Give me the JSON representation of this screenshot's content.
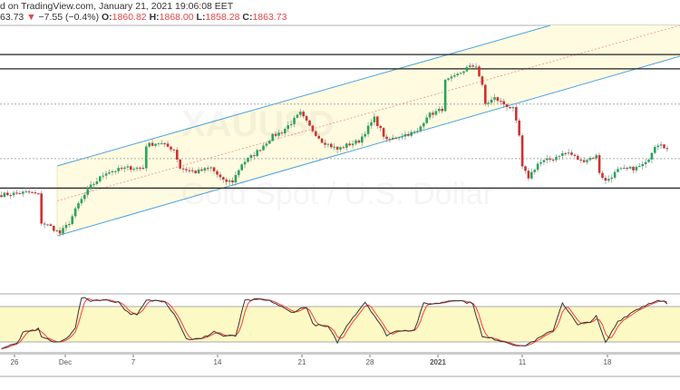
{
  "header": {
    "line1": "d on TradingView.com, January 21, 2021 19:06:08 EET",
    "last": "63.73",
    "change_arrow": "▼",
    "change": "−7.55 (−0.4%)",
    "o_label": "O:",
    "o": "1860.82",
    "h_label": "H:",
    "h": "1868.00",
    "l_label": "L:",
    "l": "1858.28",
    "c_label": "C:",
    "c": "1863.73"
  },
  "watermark": {
    "symbol": "XAUUSD",
    "description": "Gold Spot / U.S. Dollar"
  },
  "colors": {
    "up": "#26a65b",
    "down": "#d32f2f",
    "channel": "#4aa3df",
    "channel_fill": "#fffbe0",
    "band_fill": "#fdf9c4",
    "k_line": "#333333",
    "d_line": "#ff3b3b"
  },
  "x_axis": {
    "ticks": [
      "26",
      "Dec",
      "7",
      "14",
      "21",
      "28",
      "2021",
      "11",
      "18"
    ]
  },
  "price_levels": {
    "resistance": [
      1977,
      1960
    ],
    "dotted": [
      1918,
      1853
    ],
    "support": [
      1818
    ]
  },
  "chart_data": {
    "type": "candlestick",
    "bar_count": 217,
    "close_keypoints": [
      [
        0,
        1810
      ],
      [
        9,
        1813
      ],
      [
        12,
        1810
      ],
      [
        13,
        1777
      ],
      [
        16,
        1772
      ],
      [
        19,
        1764
      ],
      [
        22,
        1777
      ],
      [
        25,
        1799
      ],
      [
        29,
        1820
      ],
      [
        34,
        1837
      ],
      [
        41,
        1842
      ],
      [
        46,
        1842
      ],
      [
        47,
        1869
      ],
      [
        51,
        1872
      ],
      [
        56,
        1864
      ],
      [
        58,
        1842
      ],
      [
        63,
        1837
      ],
      [
        68,
        1842
      ],
      [
        72,
        1826
      ],
      [
        75,
        1826
      ],
      [
        78,
        1847
      ],
      [
        82,
        1858
      ],
      [
        88,
        1880
      ],
      [
        91,
        1885
      ],
      [
        97,
        1907
      ],
      [
        100,
        1891
      ],
      [
        104,
        1874
      ],
      [
        109,
        1864
      ],
      [
        112,
        1869
      ],
      [
        116,
        1874
      ],
      [
        121,
        1901
      ],
      [
        125,
        1874
      ],
      [
        129,
        1880
      ],
      [
        135,
        1885
      ],
      [
        138,
        1904
      ],
      [
        143,
        1912
      ],
      [
        144,
        1945
      ],
      [
        147,
        1950
      ],
      [
        151,
        1961
      ],
      [
        154,
        1964
      ],
      [
        156,
        1939
      ],
      [
        157,
        1918
      ],
      [
        160,
        1925
      ],
      [
        163,
        1918
      ],
      [
        166,
        1912
      ],
      [
        168,
        1880
      ],
      [
        169,
        1842
      ],
      [
        171,
        1831
      ],
      [
        174,
        1847
      ],
      [
        176,
        1850
      ],
      [
        179,
        1853
      ],
      [
        181,
        1858
      ],
      [
        184,
        1860
      ],
      [
        188,
        1850
      ],
      [
        193,
        1856
      ],
      [
        194,
        1837
      ],
      [
        196,
        1826
      ],
      [
        200,
        1839
      ],
      [
        206,
        1842
      ],
      [
        209,
        1847
      ],
      [
        212,
        1869
      ],
      [
        214,
        1872
      ],
      [
        216,
        1864
      ]
    ],
    "stochastic": {
      "upper": 80,
      "lower": 20,
      "k_keypoints": [
        [
          0,
          10
        ],
        [
          5,
          17
        ],
        [
          7,
          35
        ],
        [
          12,
          42
        ],
        [
          13,
          30
        ],
        [
          16,
          22
        ],
        [
          18,
          18
        ],
        [
          21,
          25
        ],
        [
          24,
          45
        ],
        [
          26,
          95
        ],
        [
          29,
          90
        ],
        [
          32,
          92
        ],
        [
          38,
          88
        ],
        [
          41,
          70
        ],
        [
          44,
          65
        ],
        [
          47,
          90
        ],
        [
          53,
          90
        ],
        [
          57,
          60
        ],
        [
          60,
          25
        ],
        [
          65,
          25
        ],
        [
          69,
          38
        ],
        [
          72,
          30
        ],
        [
          76,
          30
        ],
        [
          79,
          90
        ],
        [
          84,
          92
        ],
        [
          88,
          88
        ],
        [
          94,
          70
        ],
        [
          99,
          80
        ],
        [
          101,
          50
        ],
        [
          106,
          45
        ],
        [
          109,
          20
        ],
        [
          113,
          55
        ],
        [
          118,
          88
        ],
        [
          121,
          65
        ],
        [
          125,
          32
        ],
        [
          129,
          40
        ],
        [
          134,
          40
        ],
        [
          137,
          85
        ],
        [
          141,
          85
        ],
        [
          147,
          92
        ],
        [
          153,
          85
        ],
        [
          156,
          28
        ],
        [
          160,
          25
        ],
        [
          165,
          18
        ],
        [
          169,
          12
        ],
        [
          174,
          25
        ],
        [
          179,
          40
        ],
        [
          182,
          87
        ],
        [
          187,
          48
        ],
        [
          191,
          55
        ],
        [
          193,
          63
        ],
        [
          196,
          18
        ],
        [
          200,
          55
        ],
        [
          206,
          75
        ],
        [
          212,
          90
        ],
        [
          215,
          88
        ],
        [
          217,
          78
        ]
      ]
    }
  }
}
